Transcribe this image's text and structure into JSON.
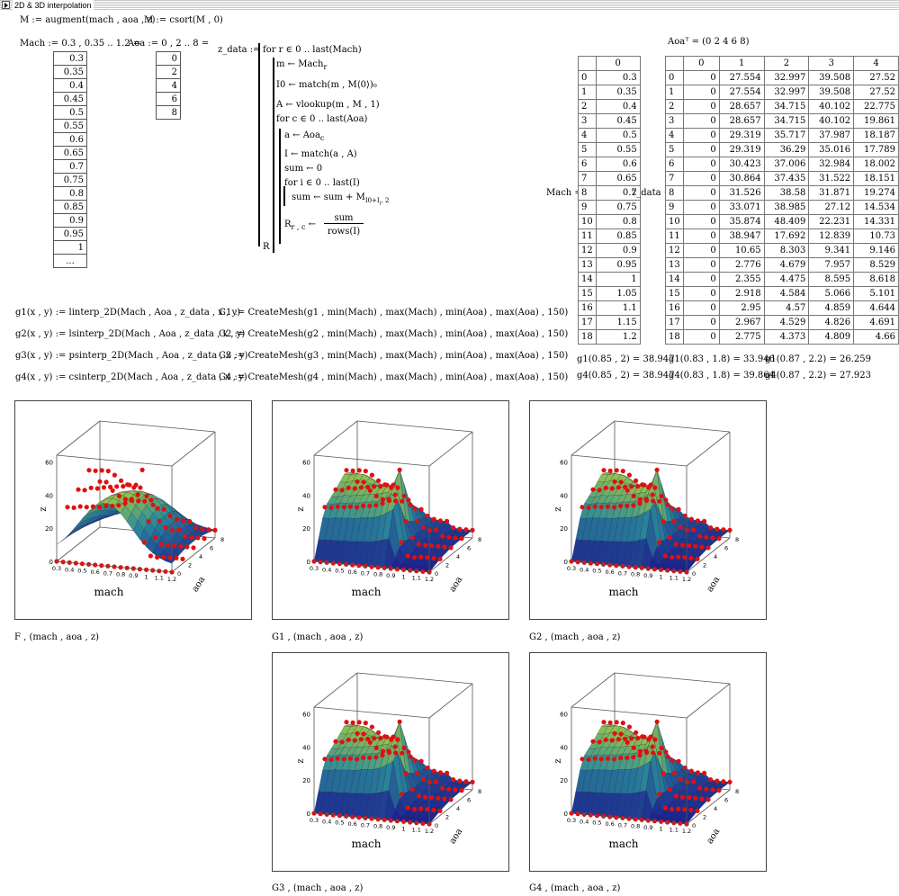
{
  "region": {
    "title": "2D & 3D interpolation"
  },
  "defs": {
    "m_augment": "M := augment(mach , aoa , z)",
    "m_csort": "M := csort(M , 0)",
    "mach_def": "Mach := 0.3 , 0.35 .. 1.2 =",
    "aoa_def": "Aoa := 0 , 2 .. 8 =",
    "aoa_t": "Aoaᵀ = (0  2  4  6  8)"
  },
  "mach_list": [
    "0.3",
    "0.35",
    "0.4",
    "0.45",
    "0.5",
    "0.55",
    "0.6",
    "0.65",
    "0.7",
    "0.75",
    "0.8",
    "0.85",
    "0.9",
    "0.95",
    "1",
    "..."
  ],
  "aoa_list": [
    "0",
    "2",
    "4",
    "6",
    "8"
  ],
  "program": {
    "label": "z_data :=",
    "lines": [
      "for  r ∈ 0 .. last(Mach)",
      "m ← Mach",
      "I0 ← match(m , M⟨0⟩)₀",
      "A ← vlookup(m , M , 1)",
      "for  c ∈ 0 .. last(Aoa)",
      "a ← Aoa",
      "I ← match(a , A)",
      "sum ← 0",
      "for  i ∈ 0 .. last(I)",
      "sum ← sum + M",
      "R",
      "sum",
      "rows(I)",
      "R"
    ],
    "sub_r": "r",
    "sub_c": "c",
    "sub_sum": "I0+I",
    "sub_sum2": "i",
    "sub_sum3": ", 2",
    "sub_Rrc": "r , c"
  },
  "mach_matrix": {
    "label": "Mach =",
    "col_header": "0",
    "index": [
      "0",
      "1",
      "2",
      "3",
      "4",
      "5",
      "6",
      "7",
      "8",
      "9",
      "10",
      "11",
      "12",
      "13",
      "14",
      "15",
      "16",
      "17",
      "18"
    ],
    "values": [
      "0.3",
      "0.35",
      "0.4",
      "0.45",
      "0.5",
      "0.55",
      "0.6",
      "0.65",
      "0.7",
      "0.75",
      "0.8",
      "0.85",
      "0.9",
      "0.95",
      "1",
      "1.05",
      "1.1",
      "1.15",
      "1.2"
    ]
  },
  "zdata_matrix": {
    "label": "z_data =",
    "col_headers": [
      "0",
      "1",
      "2",
      "3",
      "4"
    ],
    "index": [
      "0",
      "1",
      "2",
      "3",
      "4",
      "5",
      "6",
      "7",
      "8",
      "9",
      "10",
      "11",
      "12",
      "13",
      "14",
      "15",
      "16",
      "17",
      "18"
    ],
    "rows": [
      [
        "0",
        "27.554",
        "32.997",
        "39.508",
        "27.52"
      ],
      [
        "0",
        "27.554",
        "32.997",
        "39.508",
        "27.52"
      ],
      [
        "0",
        "28.657",
        "34.715",
        "40.102",
        "22.775"
      ],
      [
        "0",
        "28.657",
        "34.715",
        "40.102",
        "19.861"
      ],
      [
        "0",
        "29.319",
        "35.717",
        "37.987",
        "18.187"
      ],
      [
        "0",
        "29.319",
        "36.29",
        "35.016",
        "17.789"
      ],
      [
        "0",
        "30.423",
        "37.006",
        "32.984",
        "18.002"
      ],
      [
        "0",
        "30.864",
        "37.435",
        "31.522",
        "18.151"
      ],
      [
        "0",
        "31.526",
        "38.58",
        "31.871",
        "19.274"
      ],
      [
        "0",
        "33.071",
        "38.985",
        "27.12",
        "14.534"
      ],
      [
        "0",
        "35.874",
        "48.409",
        "22.231",
        "14.331"
      ],
      [
        "0",
        "38.947",
        "17.692",
        "12.839",
        "10.73"
      ],
      [
        "0",
        "10.65",
        "8.303",
        "9.341",
        "9.146"
      ],
      [
        "0",
        "2.776",
        "4.679",
        "7.957",
        "8.529"
      ],
      [
        "0",
        "2.355",
        "4.475",
        "8.595",
        "8.618"
      ],
      [
        "0",
        "2.918",
        "4.584",
        "5.066",
        "5.101"
      ],
      [
        "0",
        "2.95",
        "4.57",
        "4.859",
        "4.644"
      ],
      [
        "0",
        "2.967",
        "4.529",
        "4.826",
        "4.691"
      ],
      [
        "0",
        "2.775",
        "4.373",
        "4.809",
        "4.66"
      ]
    ]
  },
  "interp_defs": [
    "g1(x , y) := linterp_2D(Mach , Aoa , z_data , x , y)",
    "g2(x , y) := lsinterp_2D(Mach , Aoa , z_data , x , y)",
    "g3(x , y) := psinterp_2D(Mach , Aoa , z_data , x , y)",
    "g4(x , y) := csinterp_2D(Mach , Aoa , z_data , x , y)"
  ],
  "mesh_defs": [
    "G1 := CreateMesh(g1 , min(Mach) , max(Mach) , min(Aoa) , max(Aoa) , 150)",
    "G2 := CreateMesh(g2 , min(Mach) , max(Mach) , min(Aoa) , max(Aoa) , 150)",
    "G3 := CreateMesh(g3 , min(Mach) , max(Mach) , min(Aoa) , max(Aoa) , 150)",
    "G4 := CreateMesh(g4 , min(Mach) , max(Mach) , min(Aoa) , max(Aoa) , 150)"
  ],
  "evals": {
    "g1a": "g1(0.85 , 2) = 38.947",
    "g1b": "g1(0.83 , 1.8) = 33.946",
    "g1c": "g1(0.87 , 2.2) = 26.259",
    "g4a": "g4(0.85 , 2) = 38.947",
    "g4b": "g4(0.83 , 1.8) = 39.864",
    "g4c": "g4(0.87 , 2.2) = 27.923"
  },
  "plot_axis": {
    "z_ticks": [
      "60",
      "40",
      "20",
      "0"
    ],
    "mach_ticks": [
      "0.3",
      "0.4",
      "0.5",
      "0.6",
      "0.7",
      "0.8",
      "0.9",
      "1",
      "1.1",
      "1.2"
    ],
    "aoa_ticks": [
      "0",
      "2",
      "4",
      "6",
      "8"
    ],
    "xlabel": "mach",
    "ylabel": "aoa",
    "zlabel": "z"
  },
  "plots": [
    {
      "caption": "F , (mach , aoa , z)",
      "variant": 0
    },
    {
      "caption": "G1 , (mach , aoa , z)",
      "variant": 1
    },
    {
      "caption": "G2 , (mach , aoa , z)",
      "variant": 1
    },
    {
      "caption": "G3 , (mach , aoa , z)",
      "variant": 1
    },
    {
      "caption": "G4 , (mach , aoa , z)",
      "variant": 1
    }
  ],
  "colors": {
    "surface_low": "#1b1f8f",
    "surface_mid": "#2a8a9a",
    "surface_high": "#d8e820",
    "marker": "#e01010"
  }
}
